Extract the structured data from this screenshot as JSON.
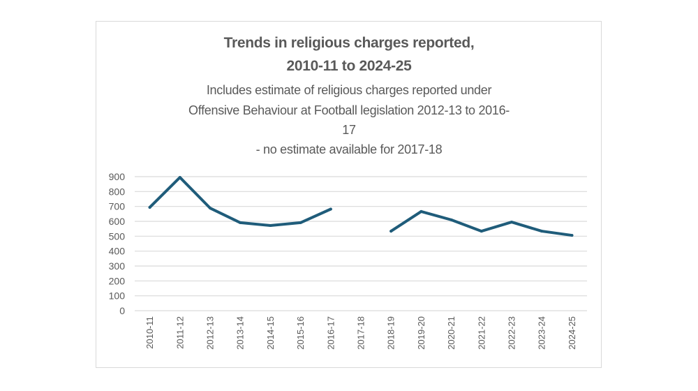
{
  "chart_data": {
    "type": "line",
    "title": "Trends in religious charges reported, 2010-11 to 2024-25",
    "title_lines": [
      "Trends in religious charges reported,",
      "2010-11 to 2024-25"
    ],
    "subtitle_lines": [
      "Includes estimate of religious charges reported under",
      "Offensive Behaviour at Football legislation 2012-13 to 2016-",
      "17",
      "- no estimate available for 2017-18"
    ],
    "xlabel": "",
    "ylabel": "",
    "categories": [
      "2010-11",
      "2011-12",
      "2012-13",
      "2013-14",
      "2014-15",
      "2015-16",
      "2016-17",
      "2017-18",
      "2018-19",
      "2019-20",
      "2020-21",
      "2021-22",
      "2022-23",
      "2023-24",
      "2024-25"
    ],
    "series": [
      {
        "name": "Religious charges reported",
        "color": "#1F5C7A",
        "values": [
          694,
          895,
          689,
          591,
          572,
          591,
          682,
          null,
          534,
          666,
          610,
          534,
          595,
          534,
          506
        ]
      }
    ],
    "ylim": [
      0,
      900
    ],
    "yticks": [
      0,
      100,
      200,
      300,
      400,
      500,
      600,
      700,
      800,
      900
    ],
    "grid": true,
    "legend": "none"
  }
}
